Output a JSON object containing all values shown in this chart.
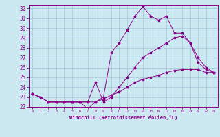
{
  "xlabel": "Windchill (Refroidissement éolien,°C)",
  "background_color": "#cce8f0",
  "grid_color": "#aaccdd",
  "line_color": "#880088",
  "xlim": [
    -0.5,
    23.5
  ],
  "ylim": [
    22,
    32.3
  ],
  "yticks": [
    22,
    23,
    24,
    25,
    26,
    27,
    28,
    29,
    30,
    31,
    32
  ],
  "xticks": [
    0,
    1,
    2,
    3,
    4,
    5,
    6,
    7,
    8,
    9,
    10,
    11,
    12,
    13,
    14,
    15,
    16,
    17,
    18,
    19,
    20,
    21,
    22,
    23
  ],
  "line1_x": [
    0,
    1,
    2,
    3,
    4,
    5,
    6,
    7,
    8,
    9,
    10,
    11,
    12,
    13,
    14,
    15,
    16,
    17,
    18,
    19,
    20,
    21,
    22,
    23
  ],
  "line1_y": [
    23.3,
    23.0,
    22.5,
    22.5,
    22.5,
    22.5,
    22.5,
    21.8,
    22.5,
    23.0,
    27.5,
    28.5,
    29.8,
    31.2,
    32.2,
    31.2,
    30.8,
    31.2,
    29.5,
    29.5,
    28.5,
    27.0,
    26.0,
    25.5
  ],
  "line2_x": [
    0,
    1,
    2,
    3,
    4,
    5,
    6,
    7,
    8,
    9,
    10,
    11,
    12,
    13,
    14,
    15,
    16,
    17,
    18,
    19,
    20,
    21,
    22,
    23
  ],
  "line2_y": [
    23.3,
    23.0,
    22.5,
    22.5,
    22.5,
    22.5,
    22.5,
    22.5,
    24.5,
    22.5,
    23.0,
    24.0,
    25.0,
    26.0,
    27.0,
    27.5,
    28.0,
    28.5,
    29.0,
    29.2,
    28.5,
    26.5,
    25.8,
    25.5
  ],
  "line3_x": [
    0,
    1,
    2,
    3,
    4,
    5,
    6,
    7,
    8,
    9,
    10,
    11,
    12,
    13,
    14,
    15,
    16,
    17,
    18,
    19,
    20,
    21,
    22,
    23
  ],
  "line3_y": [
    23.3,
    23.0,
    22.5,
    22.5,
    22.5,
    22.5,
    22.5,
    22.5,
    22.5,
    22.8,
    23.2,
    23.5,
    24.0,
    24.5,
    24.8,
    25.0,
    25.2,
    25.5,
    25.7,
    25.8,
    25.8,
    25.8,
    25.5,
    25.5
  ],
  "ytick_fontsize": 5.5,
  "xtick_fontsize": 3.8,
  "xlabel_fontsize": 5.0
}
